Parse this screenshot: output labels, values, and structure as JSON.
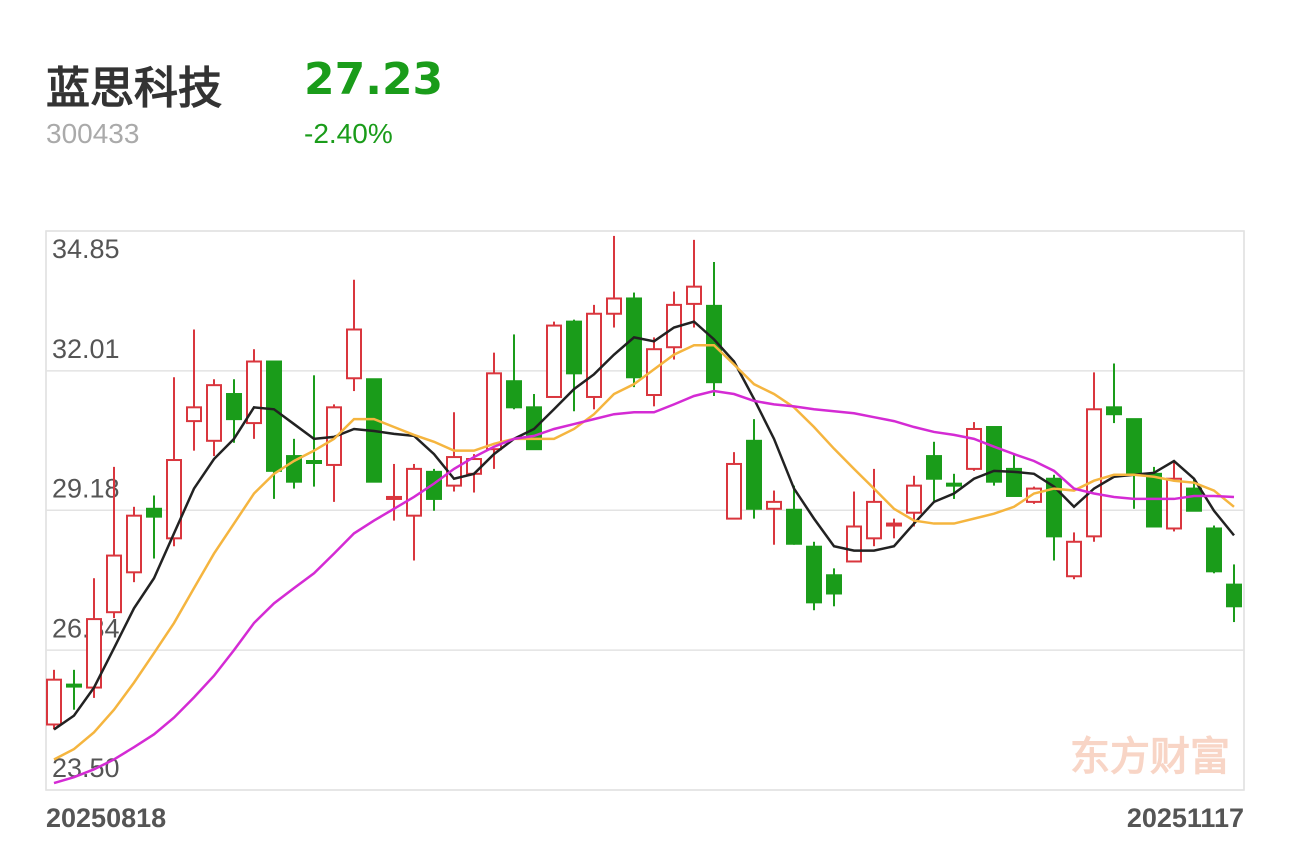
{
  "header": {
    "name": "蓝思科技",
    "code": "300433",
    "price": "27.23",
    "change": "-2.40%",
    "price_color": "#1a9c1a"
  },
  "watermark": "东方财富",
  "chart_data": {
    "type": "candlestick",
    "categories": [
      "20250818",
      null,
      null,
      null,
      null,
      null,
      null,
      null,
      null,
      null,
      null,
      null,
      null,
      null,
      null,
      null,
      null,
      null,
      null,
      null,
      null,
      null,
      null,
      null,
      null,
      null,
      null,
      null,
      null,
      null,
      null,
      null,
      null,
      null,
      null,
      null,
      null,
      null,
      null,
      null,
      null,
      null,
      null,
      null,
      null,
      null,
      null,
      null,
      null,
      null,
      null,
      null,
      null,
      null,
      null,
      null,
      null,
      null,
      null,
      "20251117"
    ],
    "open": [
      24.83,
      25.64,
      25.58,
      27.11,
      27.92,
      29.21,
      28.61,
      30.99,
      30.59,
      31.54,
      30.95,
      32.2,
      30.28,
      30.18,
      30.1,
      31.86,
      31.84,
      29.43,
      29.07,
      29.96,
      29.68,
      29.92,
      30.42,
      31.8,
      31.27,
      31.48,
      33.01,
      31.48,
      33.17,
      33.48,
      31.52,
      32.49,
      33.37,
      33.33,
      29.01,
      30.59,
      29.21,
      29.19,
      28.44,
      27.86,
      28.14,
      28.61,
      28.87,
      29.13,
      30.28,
      29.72,
      30.02,
      30.87,
      30.02,
      29.35,
      29.82,
      27.84,
      28.65,
      31.27,
      31.03,
      29.92,
      28.81,
      29.62,
      28.81,
      27.67
    ],
    "high": [
      25.94,
      25.94,
      27.8,
      30.06,
      29.25,
      29.48,
      31.88,
      32.85,
      31.84,
      31.84,
      32.45,
      32.2,
      30.63,
      31.92,
      31.33,
      33.86,
      31.84,
      30.12,
      30.12,
      30.02,
      31.17,
      30.32,
      32.38,
      32.75,
      31.54,
      33.01,
      33.05,
      33.35,
      34.75,
      33.6,
      32.69,
      33.62,
      34.67,
      34.22,
      30.36,
      31.03,
      29.58,
      29.68,
      28.54,
      28.0,
      29.56,
      30.02,
      29.01,
      29.88,
      30.57,
      29.92,
      30.97,
      30.87,
      30.32,
      29.66,
      29.9,
      28.73,
      31.98,
      32.16,
      31.03,
      30.06,
      30.18,
      29.82,
      28.87,
      28.08
    ],
    "low": [
      24.73,
      25.13,
      25.37,
      26.99,
      27.72,
      28.2,
      28.45,
      30.39,
      30.28,
      30.55,
      30.63,
      29.41,
      29.62,
      29.66,
      29.35,
      31.6,
      29.76,
      28.97,
      28.16,
      29.17,
      29.56,
      29.54,
      30.02,
      31.23,
      30.42,
      31.48,
      31.19,
      31.23,
      32.89,
      31.68,
      31.29,
      32.24,
      32.89,
      31.5,
      29.01,
      29.01,
      28.48,
      28.48,
      27.15,
      27.23,
      28.14,
      28.45,
      28.61,
      28.85,
      29.37,
      29.41,
      29.98,
      29.68,
      29.47,
      29.31,
      28.16,
      27.78,
      28.54,
      30.95,
      29.21,
      28.85,
      28.75,
      29.17,
      27.9,
      26.91
    ],
    "close": [
      25.74,
      25.62,
      26.97,
      28.26,
      29.07,
      29.05,
      30.2,
      31.27,
      31.72,
      31.03,
      32.2,
      29.98,
      29.76,
      30.16,
      31.27,
      32.85,
      29.76,
      29.45,
      30.02,
      29.41,
      30.26,
      30.22,
      31.96,
      31.27,
      30.42,
      32.93,
      31.96,
      33.17,
      33.48,
      31.88,
      32.45,
      33.35,
      33.72,
      31.78,
      30.12,
      29.21,
      29.35,
      28.5,
      27.31,
      27.49,
      28.85,
      29.35,
      28.91,
      29.68,
      29.82,
      29.7,
      30.83,
      29.76,
      29.47,
      29.62,
      28.65,
      28.54,
      31.23,
      31.13,
      29.9,
      28.85,
      29.82,
      29.17,
      27.94,
      27.23
    ],
    "up_color": "#d9363e",
    "down_color": "#1a9c1a",
    "series": [
      {
        "color": "#222222",
        "values": [
          24.73,
          25.01,
          25.58,
          26.38,
          27.19,
          27.8,
          28.71,
          29.62,
          30.22,
          30.63,
          31.27,
          31.23,
          30.93,
          30.63,
          30.67,
          30.83,
          30.79,
          30.73,
          30.69,
          30.32,
          29.82,
          29.92,
          30.32,
          30.63,
          30.83,
          31.23,
          31.64,
          31.94,
          32.34,
          32.69,
          32.61,
          32.89,
          33.01,
          32.65,
          32.2,
          31.44,
          30.63,
          29.62,
          29.01,
          28.45,
          28.36,
          28.36,
          28.45,
          28.91,
          29.35,
          29.52,
          29.82,
          29.98,
          29.96,
          29.92,
          29.66,
          29.25,
          29.62,
          29.86,
          29.9,
          29.94,
          30.18,
          29.82,
          29.17,
          28.67
        ]
      },
      {
        "color": "#f5b53f",
        "values": [
          24.12,
          24.33,
          24.67,
          25.13,
          25.68,
          26.28,
          26.89,
          27.6,
          28.3,
          28.91,
          29.52,
          29.92,
          30.18,
          30.39,
          30.63,
          31.03,
          31.03,
          30.87,
          30.71,
          30.57,
          30.39,
          30.39,
          30.53,
          30.63,
          30.63,
          30.63,
          30.83,
          31.13,
          31.54,
          31.74,
          32.04,
          32.34,
          32.53,
          32.53,
          32.14,
          31.74,
          31.54,
          31.27,
          30.87,
          30.43,
          30.02,
          29.62,
          29.21,
          28.97,
          28.91,
          28.91,
          29.01,
          29.11,
          29.25,
          29.52,
          29.62,
          29.58,
          29.78,
          29.9,
          29.9,
          29.86,
          29.78,
          29.74,
          29.58,
          29.25
        ]
      },
      {
        "color": "#d42bd4",
        "values": [
          23.64,
          23.76,
          23.92,
          24.12,
          24.37,
          24.63,
          24.97,
          25.38,
          25.82,
          26.34,
          26.89,
          27.29,
          27.6,
          27.9,
          28.3,
          28.71,
          28.97,
          29.21,
          29.45,
          29.72,
          30.02,
          30.26,
          30.47,
          30.63,
          30.69,
          30.83,
          30.93,
          31.03,
          31.13,
          31.17,
          31.17,
          31.33,
          31.5,
          31.6,
          31.54,
          31.4,
          31.33,
          31.29,
          31.23,
          31.19,
          31.15,
          31.07,
          30.99,
          30.87,
          30.77,
          30.71,
          30.63,
          30.47,
          30.32,
          30.18,
          29.98,
          29.62,
          29.52,
          29.45,
          29.41,
          29.41,
          29.41,
          29.47,
          29.47,
          29.45
        ]
      }
    ],
    "ylim": [
      23.5,
      34.85
    ],
    "yticks": [
      {
        "value": 23.5,
        "label": "23.50"
      },
      26.34,
      29.18,
      32.01,
      34.85
    ],
    "grid": true
  }
}
